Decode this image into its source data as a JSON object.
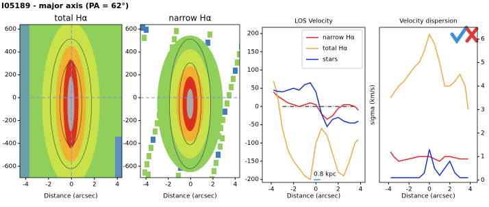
{
  "title": "I05189 - major axis (PA = 62°)",
  "chart_data": [
    {
      "type": "image",
      "title": "total Hα",
      "xlabel": "Distance (arcsec)",
      "xlim": [
        -4.5,
        4.4
      ],
      "ylim": [
        -700,
        640
      ],
      "xticks": [
        -4,
        -2,
        0,
        2,
        4
      ],
      "yticks": [
        -600,
        -400,
        -200,
        0,
        200,
        400,
        600
      ],
      "hline": 0,
      "vline": 0
    },
    {
      "type": "image",
      "title": "narrow Hα",
      "xlabel": "Distance (arcsec)",
      "xlim": [
        -4.5,
        4.4
      ],
      "ylim": [
        -700,
        640
      ],
      "xticks": [
        -4,
        -2,
        0,
        2,
        4
      ],
      "yticks": [
        -600,
        -400,
        -200,
        0,
        200,
        400,
        600
      ],
      "hline": 0
    },
    {
      "type": "line",
      "title": "LOS Velocity",
      "xlabel": "Distance (arcsec)",
      "xlim": [
        -4.8,
        4.4
      ],
      "ylim": [
        -208,
        217
      ],
      "xticks": [
        -4,
        -2,
        0,
        2,
        4
      ],
      "yticks": [
        -200,
        -150,
        -100,
        -50,
        0,
        50,
        100,
        150,
        200
      ],
      "hline": 0,
      "annotation": "0.8 kpc",
      "legend": "upper right",
      "x": [
        -3.8,
        -3.5,
        -3,
        -2.5,
        -2,
        -1.5,
        -1,
        -0.5,
        0,
        0.5,
        1,
        1.5,
        2,
        2.5,
        3,
        3.5,
        3.8
      ],
      "series": [
        {
          "name": "narrow Hα",
          "color": "#e8262a",
          "values": [
            40,
            30,
            20,
            10,
            5,
            0,
            5,
            10,
            5,
            -20,
            -35,
            -25,
            -5,
            5,
            5,
            0,
            -10
          ]
        },
        {
          "name": "total Hα",
          "color": "#f5a742",
          "values": [
            70,
            40,
            -60,
            -120,
            -150,
            -170,
            -190,
            -200,
            -100,
            -60,
            -80,
            -130,
            -180,
            -190,
            -150,
            -100,
            -90
          ]
        },
        {
          "name": "stars",
          "color": "#1432d8",
          "values": [
            45,
            42,
            40,
            45,
            50,
            45,
            60,
            65,
            40,
            -20,
            -55,
            -35,
            -30,
            -40,
            -45,
            -45,
            -40
          ]
        }
      ]
    },
    {
      "type": "line",
      "title": "Velocity dispersion",
      "ylabel": "sigma (km/s)",
      "xlabel": "Distance (arcsec)",
      "xlim": [
        -4.9,
        4.7
      ],
      "y2lim": [
        -0.1,
        6.5
      ],
      "xticks": [
        -4,
        -2,
        0,
        2,
        4
      ],
      "y2ticks": [
        0,
        1,
        2,
        3,
        4,
        5,
        6
      ],
      "x": [
        -3.8,
        -3.5,
        -3,
        -2.5,
        -2,
        -1.5,
        -1,
        -0.5,
        0,
        0.5,
        1,
        1.5,
        2,
        2.5,
        3,
        3.5,
        3.8
      ],
      "series": [
        {
          "color": "#f5a742",
          "axis": "y2",
          "values": [
            3.5,
            3.7,
            4,
            4.2,
            4.5,
            4.8,
            5,
            5.5,
            6.2,
            5.8,
            5,
            4,
            4,
            4.2,
            4.5,
            4,
            3
          ]
        },
        {
          "color": "#e8262a",
          "axis": "y2",
          "values": [
            1.2,
            1,
            0.8,
            0.85,
            0.9,
            0.95,
            1,
            1,
            1,
            0.9,
            0.8,
            1,
            1,
            0.95,
            0.9,
            0.9,
            0.9
          ]
        },
        {
          "color": "#1432d8",
          "axis": "y2",
          "values": [
            0.1,
            0.1,
            0.1,
            0.1,
            0.1,
            0.1,
            0.1,
            0.3,
            1.3,
            0.5,
            0.2,
            0.5,
            0.8,
            0.3,
            0.1,
            0.1,
            0.1
          ]
        }
      ]
    }
  ]
}
